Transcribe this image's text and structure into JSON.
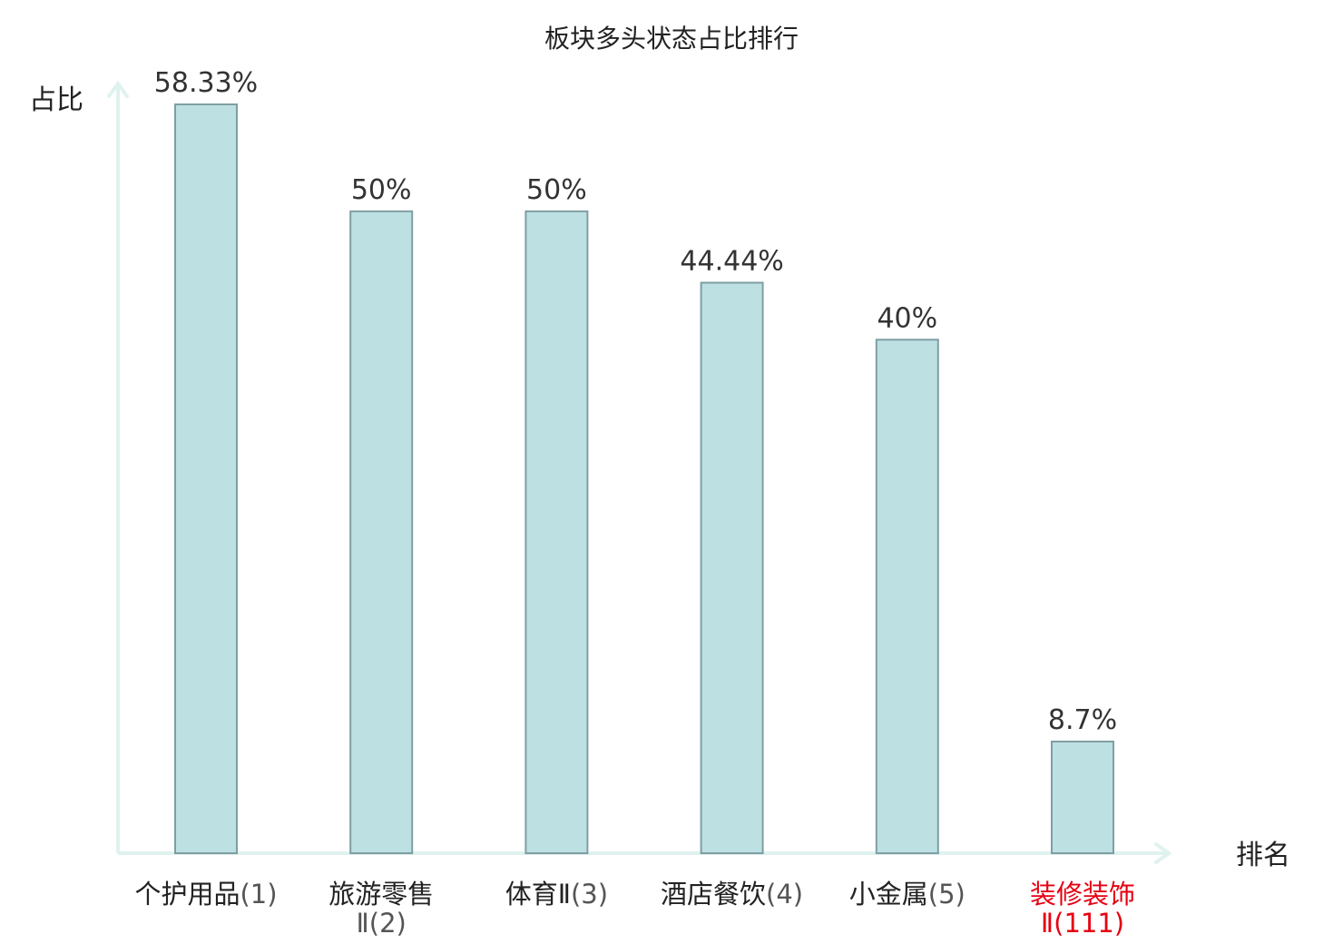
{
  "chart_data": {
    "type": "bar",
    "title": "板块多头状态占比排行",
    "ylabel": "占比",
    "xlabel": "排名",
    "ylim": [
      0,
      60
    ],
    "grid": false,
    "legend": "none",
    "categories": [
      {
        "name": "个护用品",
        "rank": "(1)",
        "highlight": false
      },
      {
        "name": "旅游零售",
        "rank": "Ⅱ(2)",
        "highlight": false
      },
      {
        "name": "体育Ⅱ",
        "rank": "(3)",
        "highlight": false
      },
      {
        "name": "酒店餐饮",
        "rank": "(4)",
        "highlight": false
      },
      {
        "name": "小金属",
        "rank": "(5)",
        "highlight": false
      },
      {
        "name": "装修装饰",
        "rank": "Ⅱ(111)",
        "highlight": true
      }
    ],
    "values": [
      58.33,
      50,
      50,
      44.44,
      40,
      8.7
    ],
    "value_labels": [
      "58.33%",
      "50%",
      "50%",
      "44.44%",
      "40%",
      "8.7%"
    ],
    "colors": {
      "bar_fill": "#bde0e3",
      "bar_stroke": "#7f9ea3",
      "axis": "#dff2ef",
      "text": "#222222",
      "rank_text": "#555555",
      "highlight": "#e60012"
    }
  }
}
